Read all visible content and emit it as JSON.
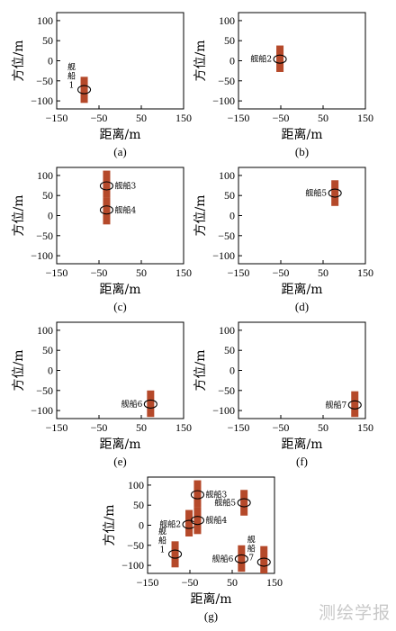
{
  "chart_data": [
    {
      "type": "scatter",
      "subplot_label": "(a)",
      "xlabel": "距离/m",
      "ylabel": "方位/m",
      "xlim": [
        -150,
        150
      ],
      "ylim": [
        -120,
        120
      ],
      "x_ticks": [
        "−150",
        "−50",
        "50",
        "150"
      ],
      "y_ticks": [
        "100",
        "50",
        "0",
        "−50",
        "−100"
      ],
      "ships": [
        {
          "label": "舰船1",
          "x": -85,
          "y": -72,
          "y_range": [
            -105,
            -40
          ],
          "label_stacked": true
        }
      ]
    },
    {
      "type": "scatter",
      "subplot_label": "(b)",
      "xlabel": "距离/m",
      "ylabel": "方位/m",
      "xlim": [
        -150,
        150
      ],
      "ylim": [
        -120,
        120
      ],
      "x_ticks": [
        "−150",
        "−50",
        "50",
        "150"
      ],
      "y_ticks": [
        "100",
        "50",
        "0",
        "−50",
        "−100"
      ],
      "ships": [
        {
          "label": "舰船2",
          "x": -52,
          "y": 4,
          "y_range": [
            -28,
            38
          ]
        }
      ]
    },
    {
      "type": "scatter",
      "subplot_label": "(c)",
      "xlabel": "距离/m",
      "ylabel": "方位/m",
      "xlim": [
        -150,
        150
      ],
      "ylim": [
        -120,
        120
      ],
      "x_ticks": [
        "−150",
        "−50",
        "50",
        "150"
      ],
      "y_ticks": [
        "100",
        "50",
        "0",
        "−50",
        "−100"
      ],
      "ships": [
        {
          "label": "舰船3",
          "x": -32,
          "y": 74,
          "y_range": [
            45,
            112
          ]
        },
        {
          "label": "舰船4",
          "x": -32,
          "y": 14,
          "y_range": [
            -22,
            45
          ]
        }
      ]
    },
    {
      "type": "scatter",
      "subplot_label": "(d)",
      "xlabel": "距离/m",
      "ylabel": "方位/m",
      "xlim": [
        -150,
        150
      ],
      "ylim": [
        -120,
        120
      ],
      "x_ticks": [
        "−150",
        "−50",
        "50",
        "150"
      ],
      "y_ticks": [
        "100",
        "50",
        "0",
        "−50",
        "−100"
      ],
      "ships": [
        {
          "label": "舰船5",
          "x": 78,
          "y": 56,
          "y_range": [
            24,
            88
          ]
        }
      ]
    },
    {
      "type": "scatter",
      "subplot_label": "(e)",
      "xlabel": "距离/m",
      "ylabel": "方位/m",
      "xlim": [
        -150,
        150
      ],
      "ylim": [
        -120,
        120
      ],
      "x_ticks": [
        "−150",
        "−50",
        "50",
        "150"
      ],
      "y_ticks": [
        "100",
        "50",
        "0",
        "−50",
        "−100"
      ],
      "ships": [
        {
          "label": "舰船6",
          "x": 72,
          "y": -84,
          "y_range": [
            -116,
            -50
          ]
        }
      ]
    },
    {
      "type": "scatter",
      "subplot_label": "(f)",
      "xlabel": "距离/m",
      "ylabel": "方位/m",
      "xlim": [
        -150,
        150
      ],
      "ylim": [
        -120,
        120
      ],
      "x_ticks": [
        "−150",
        "−50",
        "50",
        "150"
      ],
      "y_ticks": [
        "100",
        "50",
        "0",
        "−50",
        "−100"
      ],
      "ships": [
        {
          "label": "舰船7",
          "x": 125,
          "y": -86,
          "y_range": [
            -116,
            -52
          ]
        }
      ]
    },
    {
      "type": "scatter",
      "subplot_label": "(g)",
      "xlabel": "距离/m",
      "ylabel": "方位/m",
      "xlim": [
        -150,
        150
      ],
      "ylim": [
        -120,
        120
      ],
      "x_ticks": [
        "−150",
        "−50",
        "50",
        "150"
      ],
      "y_ticks": [
        "100",
        "50",
        "0",
        "−50",
        "−100"
      ],
      "ships": [
        {
          "label": "舰船1",
          "x": -85,
          "y": -72,
          "y_range": [
            -105,
            -40
          ],
          "label_stacked": true
        },
        {
          "label": "舰船2",
          "x": -52,
          "y": 2,
          "y_range": [
            -28,
            38
          ]
        },
        {
          "label": "舰船3",
          "x": -32,
          "y": 76,
          "y_range": [
            45,
            112
          ]
        },
        {
          "label": "舰船4",
          "x": -32,
          "y": 12,
          "y_range": [
            -22,
            45
          ]
        },
        {
          "label": "舰船5",
          "x": 78,
          "y": 56,
          "y_range": [
            24,
            88
          ]
        },
        {
          "label": "舰船6",
          "x": 72,
          "y": -84,
          "y_range": [
            -116,
            -50
          ]
        },
        {
          "label": "舰船7",
          "x": 125,
          "y": -92,
          "y_range": [
            -120,
            -52
          ],
          "label_stacked": true
        }
      ]
    }
  ],
  "colors": {
    "bar": "#b5492a",
    "ellipse": "#000000",
    "axis": "#000000"
  },
  "watermark": "测绘学报"
}
